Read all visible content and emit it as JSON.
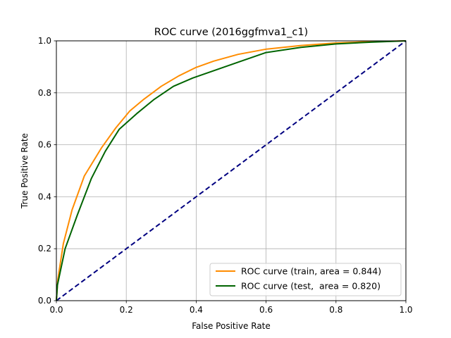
{
  "chart_data": {
    "type": "line",
    "title": "ROC curve (2016ggfmva1_c1)",
    "xlabel": "False Positive Rate",
    "ylabel": "True Positive Rate",
    "xlim": [
      0,
      1
    ],
    "ylim": [
      0,
      1
    ],
    "xticks": [
      "0.0",
      "0.2",
      "0.4",
      "0.6",
      "0.8",
      "1.0"
    ],
    "yticks": [
      "0.0",
      "0.2",
      "0.4",
      "0.6",
      "0.8",
      "1.0"
    ],
    "grid": true,
    "legend_position": "lower-right",
    "series": [
      {
        "name": "ROC curve (train, area = 0.844)",
        "color": "#ff8c00",
        "style": "solid",
        "x": [
          0.0,
          0.004,
          0.02,
          0.045,
          0.08,
          0.13,
          0.17,
          0.21,
          0.25,
          0.3,
          0.35,
          0.4,
          0.45,
          0.52,
          0.6,
          0.7,
          0.8,
          0.9,
          1.0
        ],
        "y": [
          0.0,
          0.08,
          0.22,
          0.35,
          0.48,
          0.59,
          0.665,
          0.73,
          0.775,
          0.825,
          0.865,
          0.898,
          0.922,
          0.948,
          0.968,
          0.982,
          0.992,
          0.997,
          1.0
        ]
      },
      {
        "name": "ROC curve (test,  area = 0.820)",
        "color": "#006400",
        "style": "solid",
        "x": [
          0.0,
          0.003,
          0.025,
          0.06,
          0.1,
          0.14,
          0.18,
          0.23,
          0.28,
          0.335,
          0.39,
          0.45,
          0.52,
          0.6,
          0.7,
          0.8,
          0.9,
          1.0
        ],
        "y": [
          0.0,
          0.06,
          0.2,
          0.33,
          0.47,
          0.575,
          0.66,
          0.72,
          0.775,
          0.825,
          0.857,
          0.885,
          0.918,
          0.955,
          0.975,
          0.988,
          0.995,
          1.0
        ]
      },
      {
        "name": "",
        "color": "#000080",
        "style": "dashed",
        "x": [
          0,
          1
        ],
        "y": [
          0,
          1
        ]
      }
    ]
  }
}
